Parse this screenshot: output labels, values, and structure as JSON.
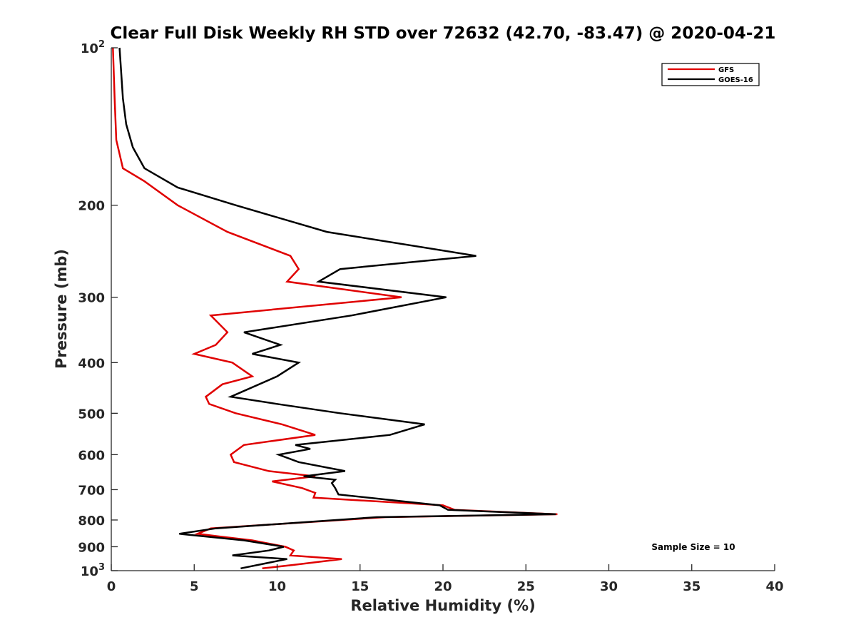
{
  "chart_data": {
    "type": "line",
    "title": "Clear Full Disk Weekly RH STD over 72632 (42.70, -83.47) @ 2020-04-21",
    "xlabel": "Relative Humidity (%)",
    "ylabel": "Pressure (mb)",
    "xlim": [
      0,
      40
    ],
    "ylim": [
      100,
      1000
    ],
    "y_scale": "log",
    "y_reversed": true,
    "x_ticks": [
      0,
      5,
      10,
      15,
      20,
      25,
      30,
      35,
      40
    ],
    "x_tick_labels": [
      "0",
      "5",
      "10",
      "15",
      "20",
      "25",
      "30",
      "35",
      "40"
    ],
    "y_ticks": [
      100,
      200,
      300,
      400,
      500,
      600,
      700,
      800,
      900,
      1000
    ],
    "y_tick_labels": [
      {
        "base": "10",
        "exp": "2"
      },
      {
        "base": "200",
        "exp": ""
      },
      {
        "base": "300",
        "exp": ""
      },
      {
        "base": "400",
        "exp": ""
      },
      {
        "base": "500",
        "exp": ""
      },
      {
        "base": "600",
        "exp": ""
      },
      {
        "base": "700",
        "exp": ""
      },
      {
        "base": "800",
        "exp": ""
      },
      {
        "base": "900",
        "exp": ""
      },
      {
        "base": "10",
        "exp": "3"
      }
    ],
    "grid": false,
    "legend_position": "top-right",
    "annotation": "Sample Size = 10",
    "series": [
      {
        "name": "GFS",
        "color": "#e00000",
        "points": [
          [
            0.1,
            100
          ],
          [
            0.2,
            125
          ],
          [
            0.3,
            150
          ],
          [
            0.7,
            170
          ],
          [
            2.0,
            180
          ],
          [
            4.0,
            200
          ],
          [
            7.0,
            225
          ],
          [
            10.8,
            250
          ],
          [
            11.3,
            265
          ],
          [
            10.6,
            280
          ],
          [
            17.5,
            300
          ],
          [
            6.0,
            325
          ],
          [
            7.0,
            350
          ],
          [
            6.3,
            370
          ],
          [
            5.0,
            385
          ],
          [
            7.3,
            400
          ],
          [
            8.5,
            425
          ],
          [
            6.7,
            440
          ],
          [
            5.7,
            465
          ],
          [
            5.9,
            480
          ],
          [
            7.5,
            500
          ],
          [
            10.3,
            525
          ],
          [
            12.3,
            550
          ],
          [
            8.0,
            575
          ],
          [
            7.2,
            600
          ],
          [
            7.4,
            620
          ],
          [
            9.5,
            645
          ],
          [
            12.3,
            660
          ],
          [
            9.7,
            675
          ],
          [
            11.5,
            695
          ],
          [
            12.3,
            710
          ],
          [
            12.2,
            725
          ],
          [
            20.0,
            750
          ],
          [
            20.7,
            765
          ],
          [
            26.9,
            780
          ],
          [
            16.5,
            790
          ],
          [
            6.0,
            830
          ],
          [
            5.2,
            850
          ],
          [
            6.5,
            860
          ],
          [
            8.5,
            875
          ],
          [
            10.5,
            900
          ],
          [
            11.0,
            915
          ],
          [
            10.8,
            935
          ],
          [
            13.9,
            950
          ],
          [
            11.0,
            975
          ],
          [
            9.1,
            990
          ]
        ]
      },
      {
        "name": "GOES-16",
        "color": "#000000",
        "points": [
          [
            0.5,
            100
          ],
          [
            0.7,
            125
          ],
          [
            0.9,
            140
          ],
          [
            1.3,
            155
          ],
          [
            2.0,
            170
          ],
          [
            4.0,
            185
          ],
          [
            7.5,
            200
          ],
          [
            13.0,
            225
          ],
          [
            22.0,
            250
          ],
          [
            13.8,
            265
          ],
          [
            12.5,
            280
          ],
          [
            20.2,
            300
          ],
          [
            14.5,
            325
          ],
          [
            8.0,
            350
          ],
          [
            10.2,
            370
          ],
          [
            8.5,
            385
          ],
          [
            11.3,
            400
          ],
          [
            10.0,
            425
          ],
          [
            7.2,
            465
          ],
          [
            10.0,
            480
          ],
          [
            13.8,
            500
          ],
          [
            18.9,
            525
          ],
          [
            16.8,
            550
          ],
          [
            11.1,
            575
          ],
          [
            12.0,
            585
          ],
          [
            10.1,
            600
          ],
          [
            11.3,
            620
          ],
          [
            14.1,
            645
          ],
          [
            11.6,
            660
          ],
          [
            13.5,
            670
          ],
          [
            13.3,
            680
          ],
          [
            13.5,
            695
          ],
          [
            13.7,
            715
          ],
          [
            19.8,
            750
          ],
          [
            20.3,
            765
          ],
          [
            26.8,
            780
          ],
          [
            16.0,
            790
          ],
          [
            6.3,
            830
          ],
          [
            4.1,
            850
          ],
          [
            8.0,
            875
          ],
          [
            10.4,
            900
          ],
          [
            9.5,
            915
          ],
          [
            7.3,
            935
          ],
          [
            10.6,
            950
          ],
          [
            7.8,
            990
          ]
        ]
      }
    ]
  }
}
